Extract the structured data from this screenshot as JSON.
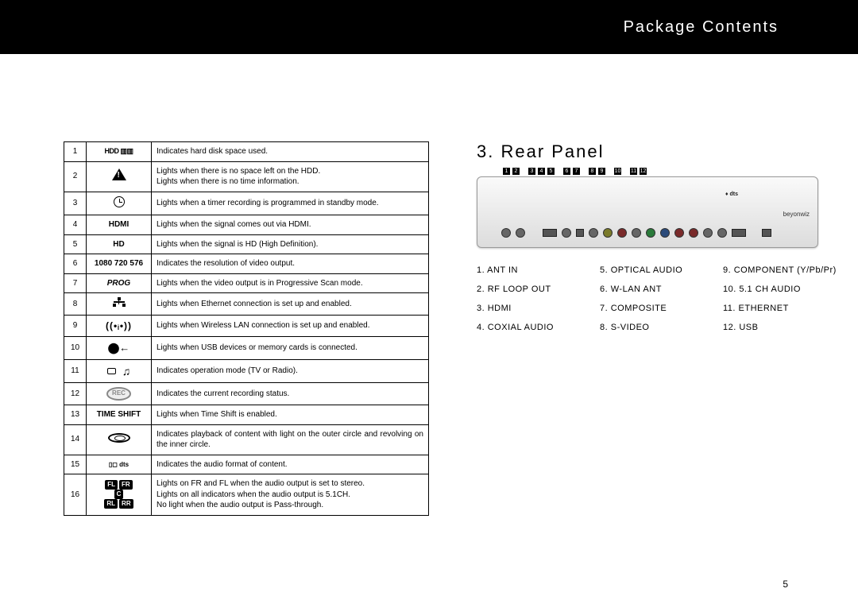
{
  "header": {
    "title": "Package Contents"
  },
  "section": {
    "title": "3. Rear Panel"
  },
  "page_number": "5",
  "indicator_rows": [
    {
      "n": "1",
      "icon_type": "hdd",
      "icon_text": "HDD ▥▥",
      "desc": "Indicates hard disk space used."
    },
    {
      "n": "2",
      "icon_type": "warn",
      "icon_text": "",
      "desc": "Lights when there is no space left on the HDD.\nLights when there is no time information."
    },
    {
      "n": "3",
      "icon_type": "clock",
      "icon_text": "",
      "desc": "Lights when a timer recording is programmed in standby mode."
    },
    {
      "n": "4",
      "icon_type": "text",
      "icon_text": "HDMI",
      "desc": "Lights when the signal comes out via HDMI."
    },
    {
      "n": "5",
      "icon_type": "text",
      "icon_text": "HD",
      "desc": "Lights when the signal is HD (High Definition)."
    },
    {
      "n": "6",
      "icon_type": "text",
      "icon_text": "1080 720 576",
      "desc": "Indicates the resolution of video output."
    },
    {
      "n": "7",
      "icon_type": "prog",
      "icon_text": "PROG",
      "desc": "Lights when the video output is in Progressive Scan mode."
    },
    {
      "n": "8",
      "icon_type": "eth",
      "icon_text": "",
      "desc": "Lights when Ethernet connection is set up and enabled."
    },
    {
      "n": "9",
      "icon_type": "wifi",
      "icon_text": "((•ᵢ•))",
      "desc": "Lights when Wireless LAN connection is set up and enabled."
    },
    {
      "n": "10",
      "icon_type": "usb",
      "icon_text": "⬤←",
      "desc": "Lights when USB devices or memory cards is connected."
    },
    {
      "n": "11",
      "icon_type": "tvradio",
      "icon_text": "",
      "desc": "Indicates operation mode (TV or Radio)."
    },
    {
      "n": "12",
      "icon_type": "rec",
      "icon_text": "REC",
      "desc": "Indicates the current recording status."
    },
    {
      "n": "13",
      "icon_type": "timeshift",
      "icon_text": "TIME SHIFT",
      "desc": "Lights when Time Shift is enabled."
    },
    {
      "n": "14",
      "icon_type": "ring",
      "icon_text": "",
      "desc": "Indicates playback of content with light on the outer circle and revolving on the inner circle."
    },
    {
      "n": "15",
      "icon_type": "audiofmt",
      "icon_text": "▯◻ dts",
      "desc": "Indicates the audio format of content."
    },
    {
      "n": "16",
      "icon_type": "speakers",
      "icon_text": "",
      "desc": "Lights on FR and FL when the audio output is set to stereo.\nLights on all indicators when the audio output is 5.1CH.\nNo light when the audio output is Pass-through."
    }
  ],
  "speaker_badges": {
    "row1": [
      "FL",
      "FR"
    ],
    "row2": [
      "C"
    ],
    "row3": [
      "RL",
      "RR"
    ]
  },
  "rear_numbers": [
    "1",
    "2",
    "3",
    "4",
    "5",
    "6",
    "7",
    "8",
    "9",
    "10",
    "11",
    "12"
  ],
  "rear_brand": "beyonwiz",
  "rear_logo": "♦ dts",
  "ports": [
    "1. ANT IN",
    "5. OPTICAL AUDIO",
    "9. COMPONENT (Y/Pb/Pr)",
    "2. RF LOOP OUT",
    "6. W-LAN ANT",
    "10. 5.1 CH AUDIO",
    "3. HDMI",
    "7. COMPOSITE",
    "11. ETHERNET",
    "4. COXIAL AUDIO",
    "8. S-VIDEO",
    "12. USB"
  ]
}
